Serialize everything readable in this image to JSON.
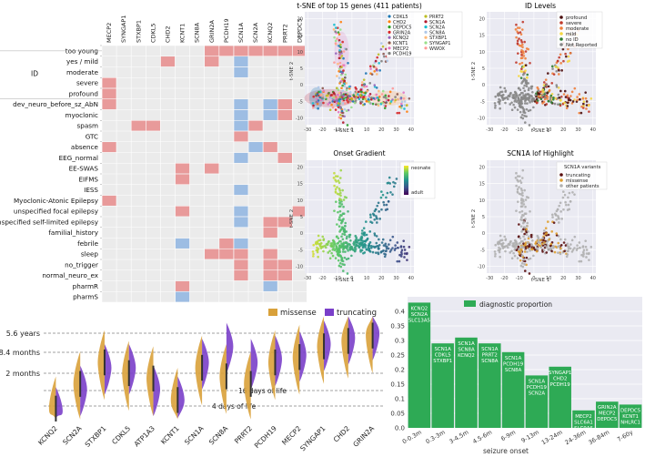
{
  "heatmap": {
    "genes": [
      "MECP2",
      "SYNGAP1",
      "STXBP1",
      "CDKL5",
      "CHD2",
      "KCNT1",
      "SCN8A",
      "GRIN2A",
      "PCDH19",
      "SCN1A",
      "SCN2A",
      "KCNQ2",
      "PRRT2",
      "DEPDC5"
    ],
    "group_label": "ID",
    "rows": [
      "too young",
      "yes / mild",
      "moderate",
      "severe",
      "profound",
      "dev_neuro_before_sz_AbN",
      "myoclonic",
      "spasm",
      "GTC",
      "absence",
      "EEG_normal",
      "EE-SWAS",
      "EIFMS",
      "IESS",
      "Myoclonic-Atonic Epilepsy",
      "unspecified focal epilepsy",
      "unspecified self-limited epilepsy",
      "familial_history",
      "febrile",
      "sleep",
      "no_trigger",
      "normal_neuro_ex",
      "pharmR",
      "pharmS"
    ],
    "colors": {
      "red": "#e89a9a",
      "blue": "#9dbde3",
      "bg": "#ebebeb"
    },
    "cells": [
      [
        [
          7,
          "red"
        ],
        [
          8,
          "red"
        ],
        [
          9,
          "red"
        ],
        [
          10,
          "red"
        ],
        [
          11,
          "red"
        ],
        [
          12,
          "red"
        ],
        [
          13,
          "red"
        ]
      ],
      [
        [
          4,
          "red"
        ],
        [
          7,
          "red"
        ],
        [
          9,
          "blue"
        ]
      ],
      [
        [
          9,
          "blue"
        ]
      ],
      [
        [
          0,
          "red"
        ]
      ],
      [
        [
          0,
          "red"
        ]
      ],
      [
        [
          0,
          "red"
        ],
        [
          9,
          "blue"
        ],
        [
          11,
          "blue"
        ],
        [
          12,
          "red"
        ]
      ],
      [
        [
          9,
          "blue"
        ],
        [
          11,
          "blue"
        ],
        [
          12,
          "red"
        ]
      ],
      [
        [
          2,
          "red"
        ],
        [
          3,
          "red"
        ],
        [
          9,
          "blue"
        ],
        [
          10,
          "red"
        ]
      ],
      [
        [
          9,
          "red"
        ]
      ],
      [
        [
          0,
          "red"
        ],
        [
          10,
          "blue"
        ],
        [
          11,
          "red"
        ]
      ],
      [
        [
          9,
          "blue"
        ],
        [
          12,
          "red"
        ]
      ],
      [
        [
          5,
          "red"
        ],
        [
          7,
          "red"
        ]
      ],
      [
        [
          5,
          "red"
        ]
      ],
      [
        [
          9,
          "blue"
        ]
      ],
      [
        [
          0,
          "red"
        ]
      ],
      [
        [
          5,
          "red"
        ],
        [
          9,
          "blue"
        ],
        [
          13,
          "red"
        ]
      ],
      [
        [
          9,
          "blue"
        ],
        [
          11,
          "red"
        ],
        [
          12,
          "red"
        ]
      ],
      [
        [
          11,
          "red"
        ]
      ],
      [
        [
          5,
          "blue"
        ],
        [
          8,
          "red"
        ],
        [
          9,
          "blue"
        ]
      ],
      [
        [
          7,
          "red"
        ],
        [
          8,
          "red"
        ],
        [
          9,
          "red"
        ],
        [
          11,
          "red"
        ]
      ],
      [
        [
          9,
          "red"
        ],
        [
          11,
          "red"
        ],
        [
          12,
          "red"
        ]
      ],
      [
        [
          9,
          "red"
        ],
        [
          11,
          "red"
        ],
        [
          12,
          "red"
        ]
      ],
      [
        [
          5,
          "red"
        ],
        [
          11,
          "blue"
        ]
      ],
      [
        [
          5,
          "blue"
        ]
      ]
    ]
  },
  "tsne_main": {
    "title": "t-SNE of top 15 genes (411 patients)",
    "xlabel": "t-SNE 1",
    "ylabel": "t-SNE 2",
    "xticks": [
      -30,
      -20,
      -10,
      0,
      10,
      20,
      30,
      40
    ],
    "yticks": [
      -10,
      -5,
      0,
      5,
      10,
      15,
      20
    ],
    "xlim": [
      -32,
      42
    ],
    "ylim": [
      -12,
      22
    ],
    "legend": [
      {
        "name": "CDKL5",
        "color": "#1f77b4"
      },
      {
        "name": "CHD2",
        "color": "#ff7f0e"
      },
      {
        "name": "DEPDC5",
        "color": "#2ca02c"
      },
      {
        "name": "GRIN2A",
        "color": "#d62728"
      },
      {
        "name": "KCNQ2",
        "color": "#9467bd"
      },
      {
        "name": "KCNT1",
        "color": "#8c564b"
      },
      {
        "name": "MECP2",
        "color": "#e377c2"
      },
      {
        "name": "PCDH19",
        "color": "#7f7f7f"
      },
      {
        "name": "PRRT2",
        "color": "#bcbd22"
      },
      {
        "name": "SCN1A",
        "color": "#b2182b"
      },
      {
        "name": "SCN2A",
        "color": "#17becf"
      },
      {
        "name": "SCN8A",
        "color": "#aec7e8"
      },
      {
        "name": "STXBP1",
        "color": "#ffbb78"
      },
      {
        "name": "SYNGAP1",
        "color": "#98df8a"
      },
      {
        "name": "WWOX",
        "color": "#ff9896"
      }
    ]
  },
  "tsne_id": {
    "title": "ID Levels",
    "xlabel": "t-SNE 1",
    "ylabel": "t-SNE 2",
    "legend": [
      {
        "name": "profound",
        "color": "#4b0d0d"
      },
      {
        "name": "severe",
        "color": "#c0392b"
      },
      {
        "name": "moderate",
        "color": "#f07f3c"
      },
      {
        "name": "mild",
        "color": "#f5d742"
      },
      {
        "name": "no ID",
        "color": "#2e7d32"
      },
      {
        "name": "Not Reported",
        "color": "#888888"
      }
    ]
  },
  "tsne_onset": {
    "title": "Onset Gradient",
    "xlabel": "t-SNE 1",
    "ylabel": "t-SNE 2",
    "colorbar_top": "neonate",
    "colorbar_bottom": "adult"
  },
  "tsne_scn1a": {
    "title": "SCN1A lof Highlight",
    "xlabel": "t-SNE 1",
    "ylabel": "t-SNE 2",
    "legend_title": "SCN1A variants",
    "legend": [
      {
        "name": "truncating",
        "color": "#5a0e0e"
      },
      {
        "name": "missense",
        "color": "#e0a030"
      },
      {
        "name": "other patients",
        "color": "#b0b0b0"
      }
    ]
  },
  "violin": {
    "genes": [
      "KCNQ2",
      "SCN2A",
      "STXBP1",
      "CDKL5",
      "ATP1A3",
      "KCNT1",
      "SCN1A",
      "SCN8A",
      "PRRT2",
      "PCDH19",
      "MECP2",
      "SYNGAP1",
      "CHD2",
      "GRIN2A"
    ],
    "legend": [
      {
        "name": "missense",
        "color": "#d9a13a"
      },
      {
        "name": "truncating",
        "color": "#7a3fc9"
      }
    ],
    "ylabels": [
      "5.6 years",
      "8.4 months",
      "2 months"
    ],
    "ref_labels": [
      "16 days of life",
      "4 days of life"
    ],
    "missense_medians": [
      0.12,
      0.35,
      0.55,
      0.45,
      0.4,
      0.2,
      0.5,
      0.42,
      0.35,
      0.55,
      0.6,
      0.7,
      0.75,
      0.8
    ],
    "truncating_medians": [
      0.1,
      0.3,
      0.5,
      0.5,
      0.3,
      0.2,
      0.55,
      0.7,
      0.55,
      0.58,
      0.62,
      0.72,
      0.78,
      0.82
    ]
  },
  "chart_data": {
    "type": "bar",
    "title": "",
    "legend": "diagnostic proportion",
    "color": "#2eaa55",
    "xlabel": "seizure onset",
    "ylabel": "",
    "ylim": [
      0,
      0.45
    ],
    "yticks": [
      0.0,
      0.05,
      0.1,
      0.15,
      0.2,
      0.25,
      0.3,
      0.35,
      0.4
    ],
    "categories": [
      "0-0.3m",
      "0.3-3m",
      "3-4.5m",
      "4.5-6m",
      "6-9m",
      "9-13m",
      "13-24m",
      "24-36m",
      "36-84m",
      "7-60y"
    ],
    "values": [
      0.43,
      0.29,
      0.31,
      0.29,
      0.26,
      0.18,
      0.21,
      0.06,
      0.09,
      0.08
    ],
    "annotations": [
      [
        "KCNQ2",
        "SCN2A",
        "SLC13A5"
      ],
      [
        "SCN1A",
        "CDKL5",
        "STXBP1"
      ],
      [
        "SCN1A",
        "SCN8A",
        "KCNQ2"
      ],
      [
        "SCN1A",
        "PRRT2",
        "SCN8A"
      ],
      [
        "SCN1A",
        "PCDH19",
        "SCN8A"
      ],
      [
        "SCN1A",
        "PCDH19",
        "SCN2A"
      ],
      [
        "SYNGAP1",
        "CHD2",
        "PCDH19"
      ],
      [
        "MECP2",
        "SLC6A1",
        "SLC9A6"
      ],
      [
        "GRIN2A",
        "MECP2",
        "DEPDC5"
      ],
      [
        "DEPDC5",
        "KCNT1",
        "NHLRC1"
      ]
    ]
  }
}
